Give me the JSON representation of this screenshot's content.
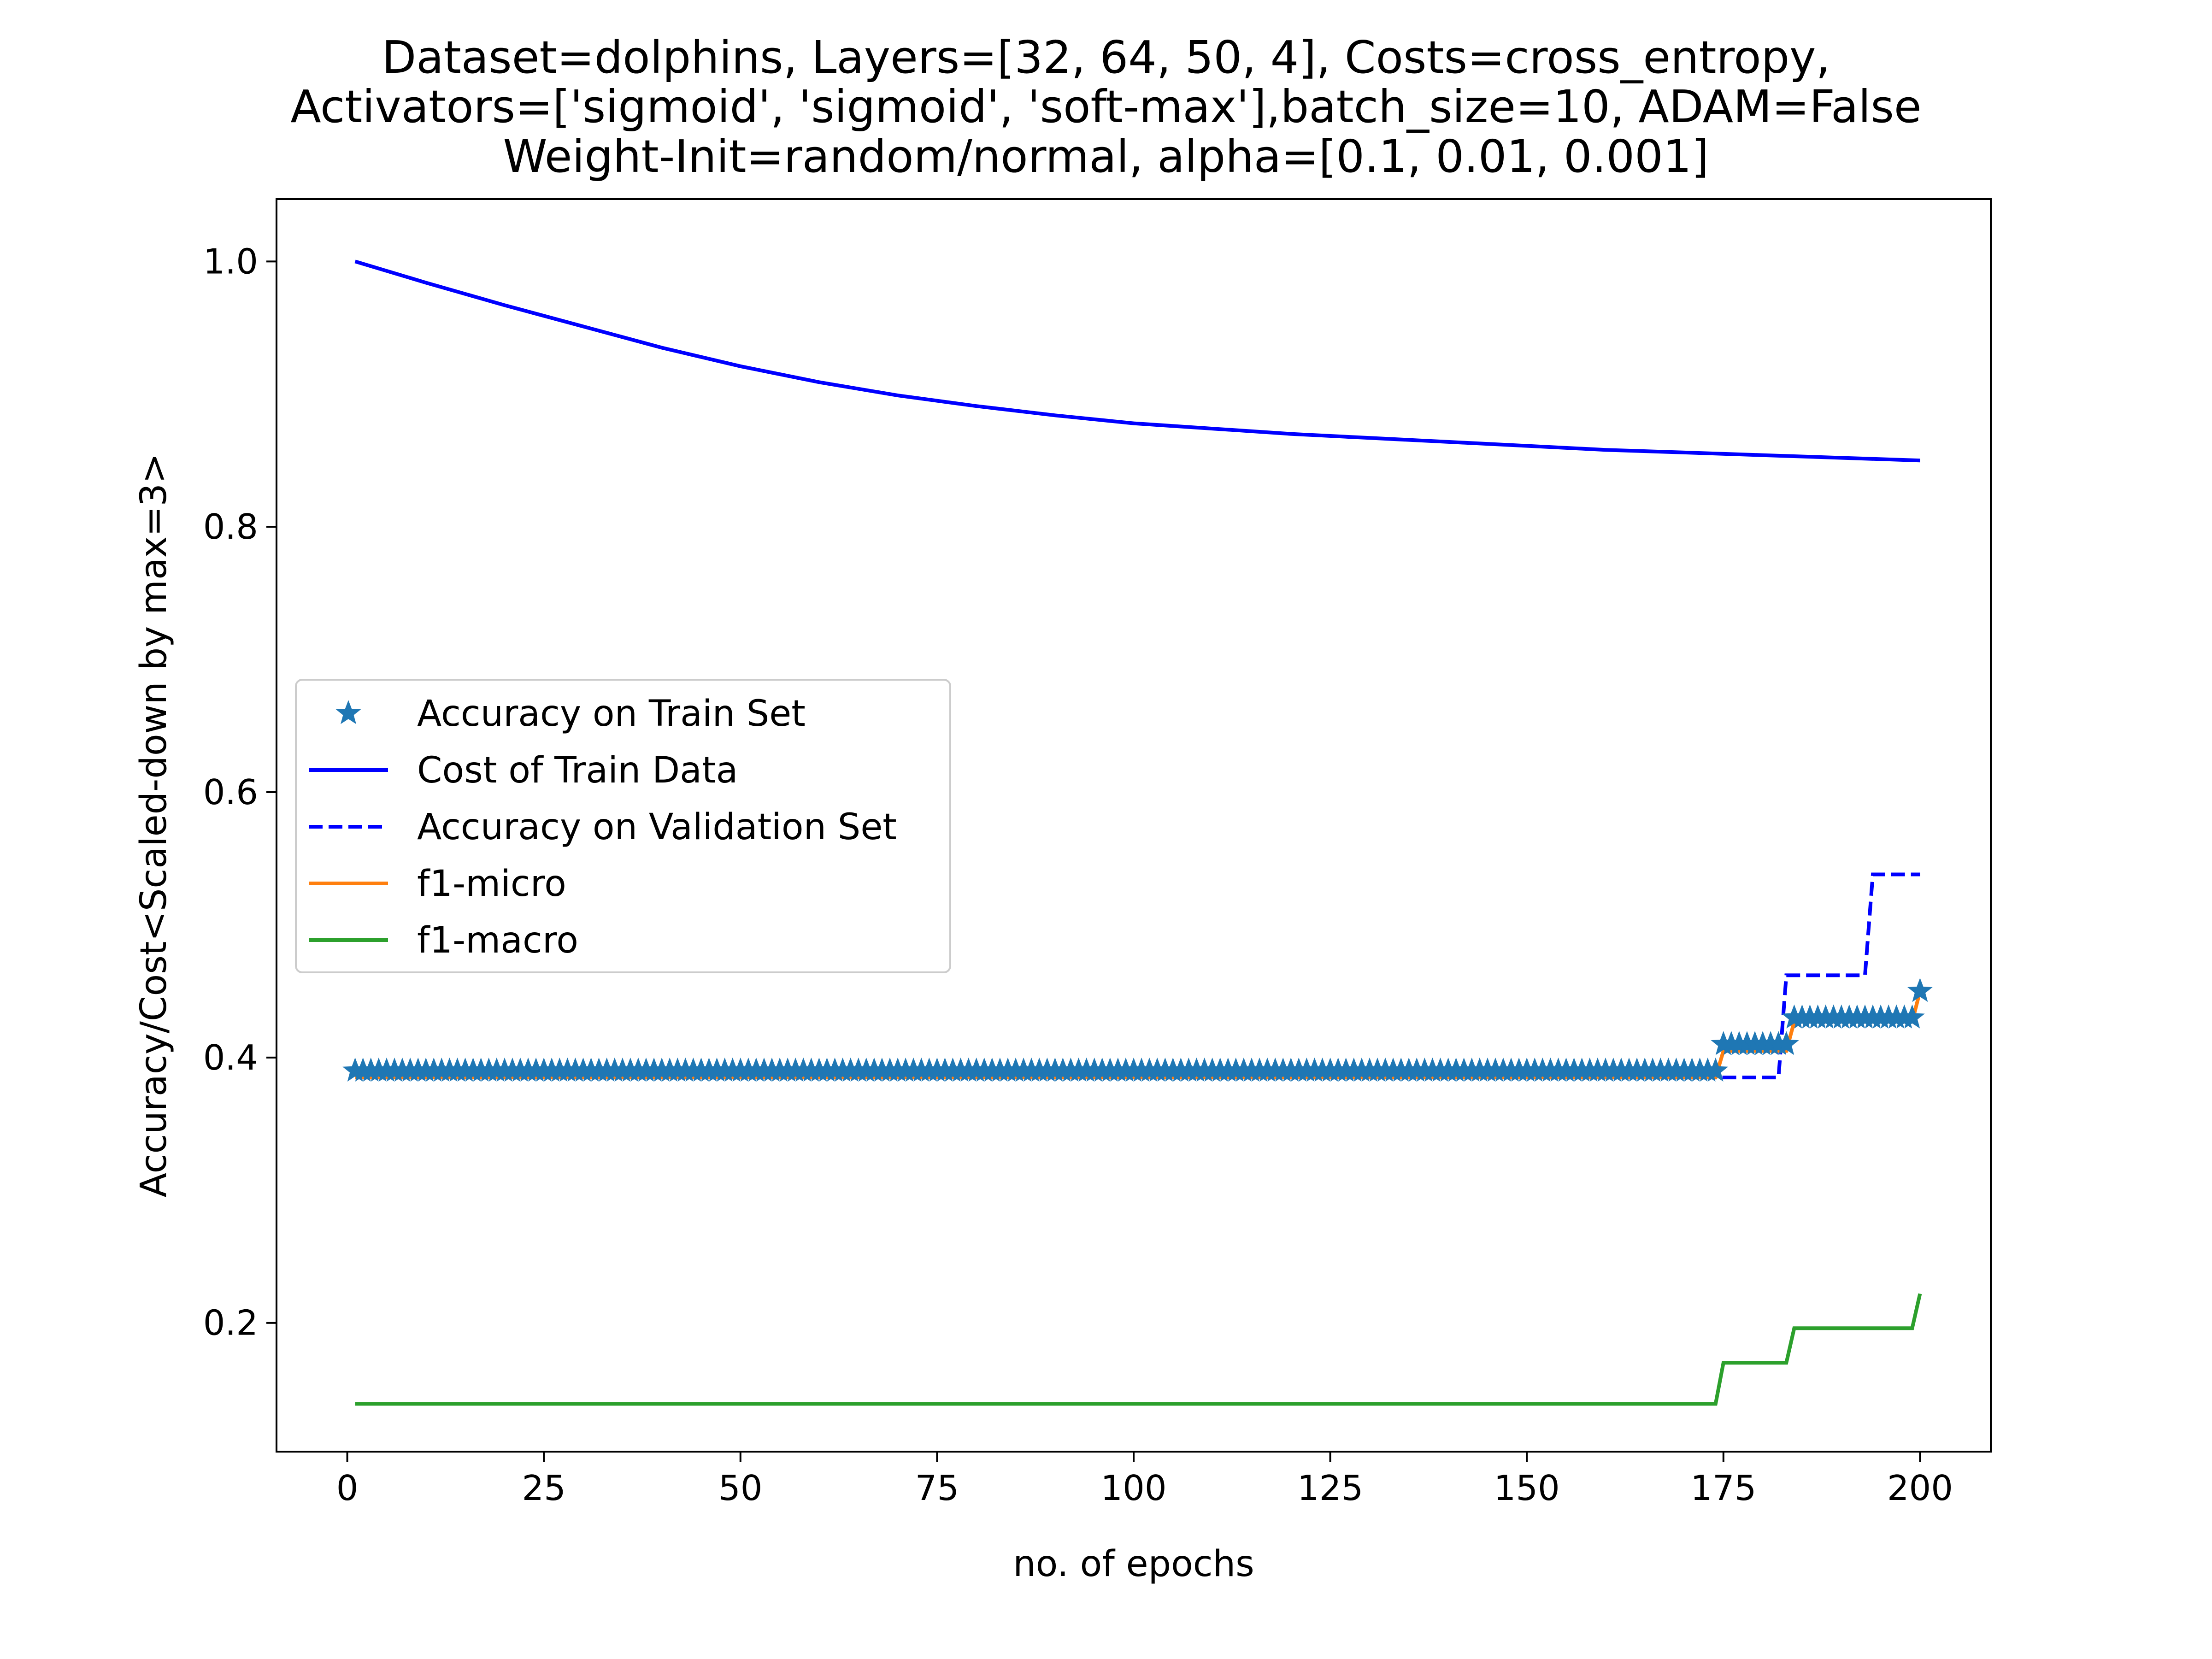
{
  "chart_data": {
    "type": "line",
    "title_lines": [
      "Dataset=dolphins, Layers=[32, 64, 50, 4], Costs=cross_entropy,",
      "Activators=['sigmoid', 'sigmoid', 'soft-max'],batch_size=10, ADAM=False",
      "Weight-Init=random/normal, alpha=[0.1, 0.01, 0.001]"
    ],
    "xlabel": "no. of epochs",
    "ylabel": "Accuracy/Cost<Scaled-down by max=3>",
    "xlim": [
      -9,
      209
    ],
    "ylim": [
      0.103,
      1.047
    ],
    "xticks": [
      0,
      25,
      50,
      75,
      100,
      125,
      150,
      175,
      200
    ],
    "xtick_labels": [
      "0",
      "25",
      "50",
      "75",
      "100",
      "125",
      "150",
      "175",
      "200"
    ],
    "yticks": [
      0.2,
      0.4,
      0.6,
      0.8,
      1.0
    ],
    "ytick_labels": [
      "0.2",
      "0.4",
      "0.6",
      "0.8",
      "1.0"
    ],
    "grid": false,
    "legend_position": "center-left",
    "series": [
      {
        "name": "Accuracy on Train Set",
        "style": "markers-star",
        "color": "#1f77b4",
        "steps": [
          [
            1,
            0.39
          ],
          [
            175,
            0.41
          ],
          [
            184,
            0.43
          ],
          [
            200,
            0.45
          ]
        ]
      },
      {
        "name": "Cost of Train Data",
        "style": "solid",
        "color": "#0000ff",
        "points": [
          [
            1,
            1.0
          ],
          [
            10,
            0.984
          ],
          [
            20,
            0.967
          ],
          [
            30,
            0.951
          ],
          [
            40,
            0.935
          ],
          [
            50,
            0.921
          ],
          [
            60,
            0.909
          ],
          [
            70,
            0.899
          ],
          [
            80,
            0.891
          ],
          [
            90,
            0.884
          ],
          [
            100,
            0.878
          ],
          [
            110,
            0.874
          ],
          [
            120,
            0.87
          ],
          [
            130,
            0.867
          ],
          [
            140,
            0.864
          ],
          [
            150,
            0.861
          ],
          [
            160,
            0.858
          ],
          [
            170,
            0.856
          ],
          [
            180,
            0.854
          ],
          [
            190,
            0.852
          ],
          [
            200,
            0.85
          ]
        ]
      },
      {
        "name": "Accuracy on Validation Set",
        "style": "dashed",
        "color": "#0000ff",
        "steps": [
          [
            1,
            0.385
          ],
          [
            183,
            0.462
          ],
          [
            194,
            0.538
          ],
          [
            200,
            0.538
          ]
        ]
      },
      {
        "name": "f1-micro",
        "style": "solid",
        "color": "#ff7f0e",
        "steps": [
          [
            1,
            0.385
          ],
          [
            175,
            0.405
          ],
          [
            184,
            0.427
          ],
          [
            200,
            0.45
          ]
        ]
      },
      {
        "name": "f1-macro",
        "style": "solid",
        "color": "#2ca02c",
        "steps": [
          [
            1,
            0.139
          ],
          [
            175,
            0.17
          ],
          [
            184,
            0.196
          ],
          [
            200,
            0.222
          ]
        ]
      }
    ]
  }
}
